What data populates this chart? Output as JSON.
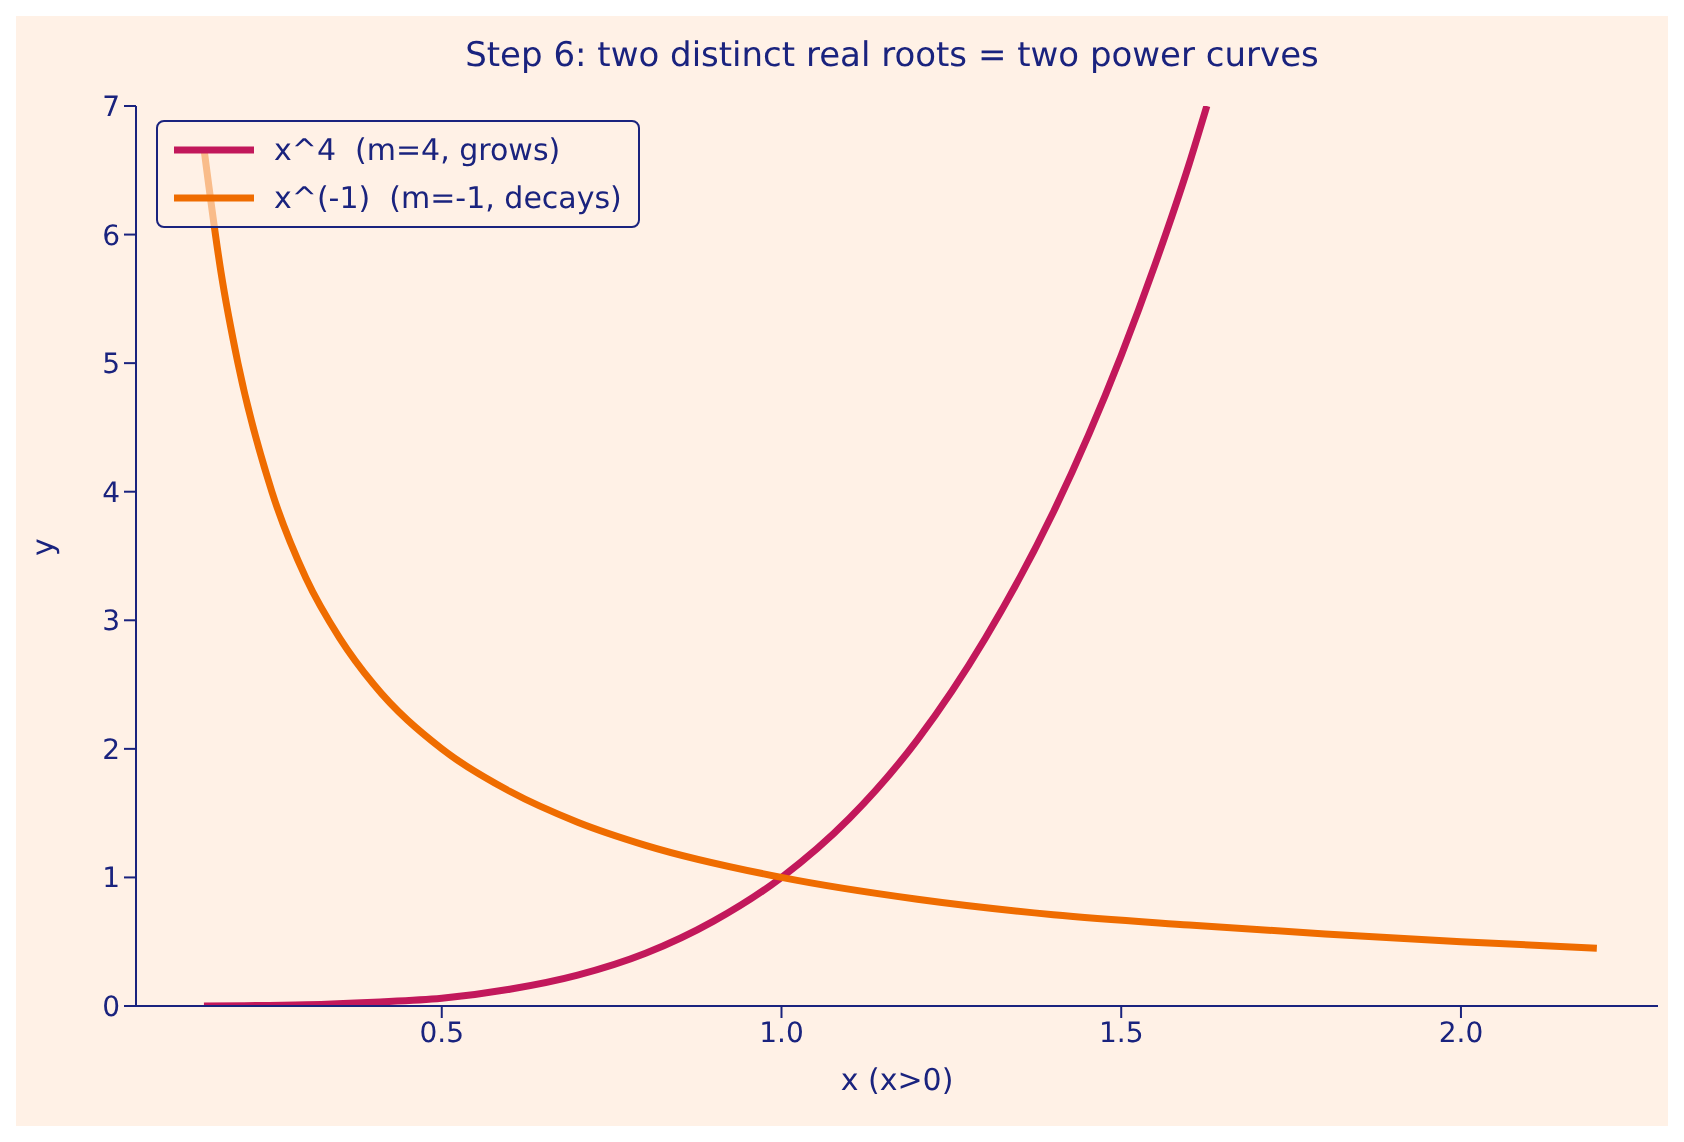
{
  "chart_data": {
    "type": "line",
    "title": "Step 6: two distinct real roots = two power curves",
    "xlabel": "x  (x>0)",
    "ylabel": "y",
    "xlim": [
      0.05,
      2.29
    ],
    "xticks": [
      {
        "value": 0.5,
        "label": "0.5"
      },
      {
        "value": 1.0,
        "label": "1.0"
      },
      {
        "value": 1.5,
        "label": "1.5"
      },
      {
        "value": 2.0,
        "label": "2.0"
      }
    ],
    "ylim": [
      0,
      7
    ],
    "yticks": [
      0,
      1,
      2,
      3,
      4,
      5,
      6,
      7
    ],
    "grid": false,
    "legend": "top left",
    "marker": "none",
    "line_style": "solid",
    "series": [
      {
        "name": "x^4  (m=4, grows)",
        "color": "#c2185b",
        "x": [
          0.15,
          0.3,
          0.4,
          0.5,
          0.6,
          0.7,
          0.8,
          0.9,
          1.0,
          1.1,
          1.2,
          1.3,
          1.4,
          1.5,
          1.55,
          1.6,
          1.626
        ],
        "values": [
          0.0,
          0.01,
          0.03,
          0.06,
          0.13,
          0.24,
          0.41,
          0.66,
          1.0,
          1.46,
          2.07,
          2.86,
          3.84,
          5.06,
          5.77,
          6.55,
          7.0
        ]
      },
      {
        "name": "x^(-1)  (m=-1, decays)",
        "color": "#ef6c00",
        "x": [
          0.15,
          0.175,
          0.2,
          0.25,
          0.3,
          0.35,
          0.4,
          0.5,
          0.6,
          0.7,
          0.8,
          1.0,
          1.2,
          1.4,
          1.6,
          1.8,
          2.0,
          2.2
        ],
        "values": [
          6.67,
          5.71,
          5.0,
          4.0,
          3.33,
          2.86,
          2.5,
          2.0,
          1.67,
          1.43,
          1.25,
          1.0,
          0.83,
          0.71,
          0.63,
          0.56,
          0.5,
          0.45
        ]
      }
    ]
  }
}
